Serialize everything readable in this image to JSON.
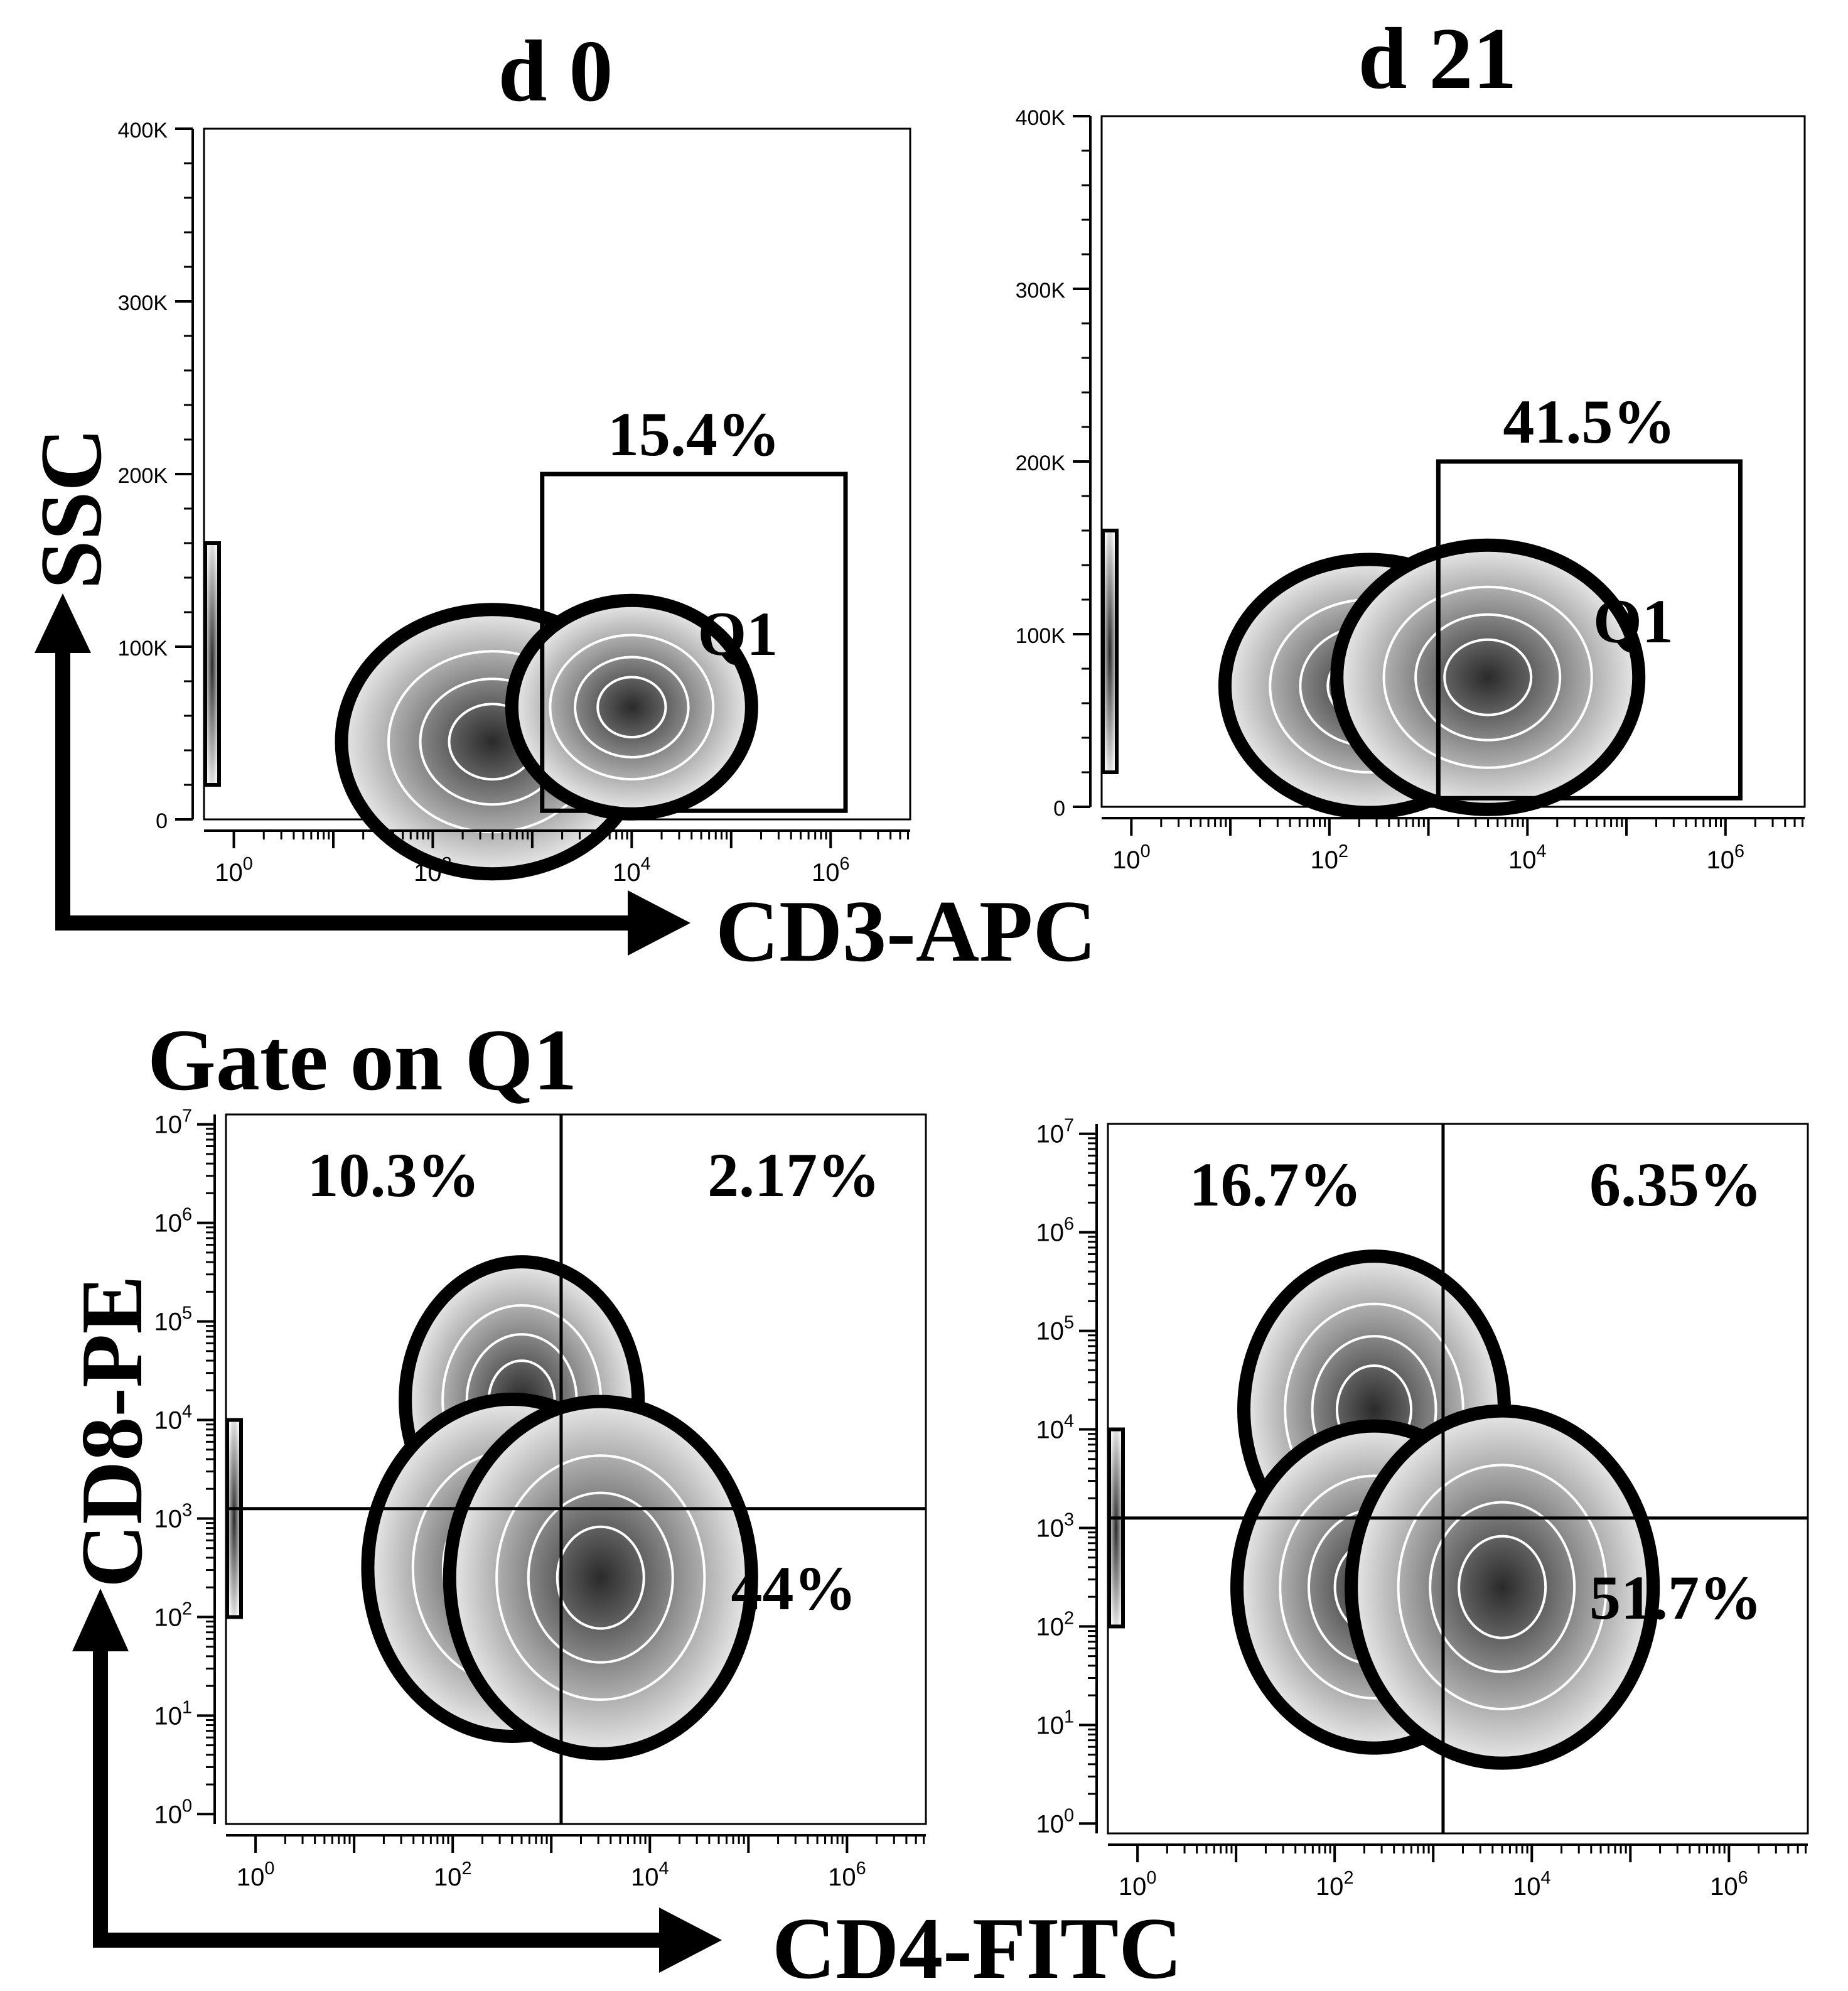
{
  "figure": {
    "col_labels": [
      "d 0",
      "d 21"
    ],
    "row2_title": "Gate on Q1",
    "axis_titles": {
      "top_x": "CD3-APC",
      "top_y": "SSC",
      "bottom_x": "CD4-FITC",
      "bottom_y": "CD8-PE"
    }
  },
  "colors": {
    "ink": "#000000",
    "background": "#ffffff",
    "density_light": "#f4f4f4",
    "density_dark": "#2a2a2a"
  },
  "chart_data": [
    {
      "id": "top-left",
      "type": "contour",
      "timepoint": "d 0",
      "xlabel": "CD3-APC",
      "ylabel": "SSC",
      "xscale": "log",
      "yscale": "linear",
      "xlim_log10": [
        -0.3,
        6.8
      ],
      "ylim": [
        0,
        400000
      ],
      "x_ticks": [
        "10^0",
        "10^2",
        "10^4",
        "10^6"
      ],
      "y_ticks": [
        "0",
        "100K",
        "200K",
        "300K",
        "400K"
      ],
      "gate": {
        "name": "Q1",
        "percent": "15.4%",
        "x_log10": [
          3.1,
          6.15
        ],
        "y": [
          5000,
          200000
        ]
      },
      "populations": [
        {
          "x_log10": 2.6,
          "y": 45000,
          "weight": 1.0
        },
        {
          "x_log10": 4.0,
          "y": 65000,
          "weight": 0.55
        }
      ]
    },
    {
      "id": "top-right",
      "type": "contour",
      "timepoint": "d 21",
      "xlabel": "CD3-APC",
      "ylabel": "SSC",
      "xscale": "log",
      "yscale": "linear",
      "xlim_log10": [
        -0.3,
        6.8
      ],
      "ylim": [
        0,
        400000
      ],
      "x_ticks": [
        "10^0",
        "10^2",
        "10^4",
        "10^6"
      ],
      "y_ticks": [
        "0",
        "100K",
        "200K",
        "300K",
        "400K"
      ],
      "gate": {
        "name": "Q1",
        "percent": "41.5%",
        "x_log10": [
          3.1,
          6.15
        ],
        "y": [
          5000,
          200000
        ]
      },
      "populations": [
        {
          "x_log10": 2.4,
          "y": 70000,
          "weight": 0.9
        },
        {
          "x_log10": 3.6,
          "y": 75000,
          "weight": 1.0
        }
      ]
    },
    {
      "id": "bottom-left",
      "type": "contour",
      "timepoint": "d 0",
      "xlabel": "CD4-FITC",
      "ylabel": "CD8-PE",
      "xscale": "log",
      "yscale": "log",
      "xlim_log10": [
        -0.3,
        6.8
      ],
      "ylim_log10": [
        -0.1,
        7.1
      ],
      "x_ticks": [
        "10^0",
        "10^2",
        "10^4",
        "10^6"
      ],
      "y_ticks": [
        "10^0",
        "10^1",
        "10^2",
        "10^3",
        "10^4",
        "10^5",
        "10^6",
        "10^7"
      ],
      "quadrant_split_log10": {
        "x": 3.1,
        "y": 3.1
      },
      "quadrants": {
        "upper_left": "10.3%",
        "upper_right": "2.17%",
        "lower_right": "44%"
      },
      "populations": [
        {
          "x_log10": 2.7,
          "y_log10": 4.2,
          "weight": 0.5
        },
        {
          "x_log10": 2.6,
          "y_log10": 2.5,
          "weight": 0.9
        },
        {
          "x_log10": 3.5,
          "y_log10": 2.4,
          "weight": 1.0
        }
      ]
    },
    {
      "id": "bottom-right",
      "type": "contour",
      "timepoint": "d 21",
      "xlabel": "CD4-FITC",
      "ylabel": "CD8-PE",
      "xscale": "log",
      "yscale": "log",
      "xlim_log10": [
        -0.3,
        6.8
      ],
      "ylim_log10": [
        -0.1,
        7.1
      ],
      "x_ticks": [
        "10^0",
        "10^2",
        "10^4",
        "10^6"
      ],
      "y_ticks": [
        "10^0",
        "10^1",
        "10^2",
        "10^3",
        "10^4",
        "10^5",
        "10^6",
        "10^7"
      ],
      "quadrant_split_log10": {
        "x": 3.1,
        "y": 3.1
      },
      "quadrants": {
        "upper_left": "16.7%",
        "upper_right": "6.35%",
        "lower_right": "51.7%"
      },
      "populations": [
        {
          "x_log10": 2.4,
          "y_log10": 4.2,
          "weight": 0.7
        },
        {
          "x_log10": 2.4,
          "y_log10": 2.4,
          "weight": 0.8
        },
        {
          "x_log10": 3.7,
          "y_log10": 2.4,
          "weight": 1.0
        }
      ]
    }
  ]
}
